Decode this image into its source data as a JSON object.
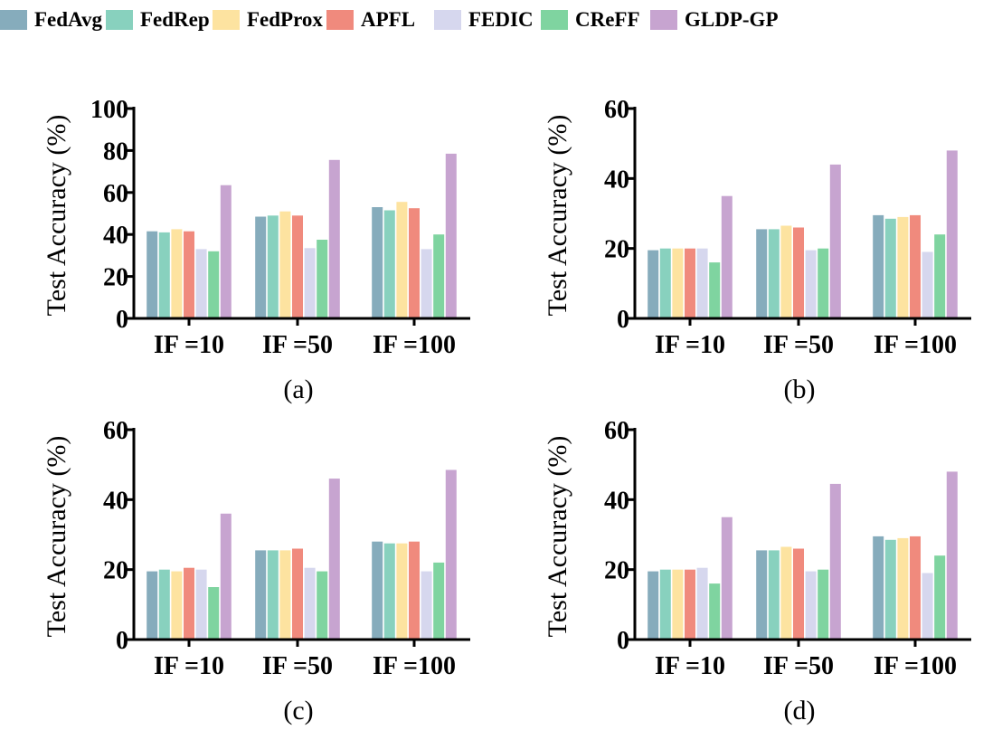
{
  "legend": [
    {
      "name": "FedAvg",
      "color": "#86acbc"
    },
    {
      "name": "FedRep",
      "color": "#88d1be"
    },
    {
      "name": "FedProx",
      "color": "#fde3a0"
    },
    {
      "name": "APFL",
      "color": "#f08a7d"
    },
    {
      "name": "FEDIC",
      "color": "#d6d7ee"
    },
    {
      "name": "CReFF",
      "color": "#7fd4a0"
    },
    {
      "name": "GLDP-GP",
      "color": "#c7a4d0"
    }
  ],
  "chart_data": [
    {
      "type": "bar",
      "panel_label": "(a)",
      "ylabel": "Test Accuracy (%)",
      "ylim": [
        0,
        100
      ],
      "yticks": [
        "0",
        "20",
        "40",
        "60",
        "80",
        "100"
      ],
      "categories": [
        "IF =10",
        "IF =50",
        "IF =100"
      ],
      "series": [
        {
          "name": "FedAvg",
          "values": [
            41.5,
            48.5,
            53
          ]
        },
        {
          "name": "FedRep",
          "values": [
            41,
            49,
            51.5
          ]
        },
        {
          "name": "FedProx",
          "values": [
            42.5,
            51,
            55.5
          ]
        },
        {
          "name": "APFL",
          "values": [
            41.5,
            49,
            52.5
          ]
        },
        {
          "name": "FEDIC",
          "values": [
            33,
            33.5,
            33
          ]
        },
        {
          "name": "CReFF",
          "values": [
            32,
            37.5,
            40
          ]
        },
        {
          "name": "GLDP-GP",
          "values": [
            63.5,
            75.5,
            78.5
          ]
        }
      ]
    },
    {
      "type": "bar",
      "panel_label": "(b)",
      "ylabel": "Test Accuracy (%)",
      "ylim": [
        0,
        60
      ],
      "yticks": [
        "0",
        "20",
        "40",
        "60"
      ],
      "categories": [
        "IF =10",
        "IF =50",
        "IF =100"
      ],
      "series": [
        {
          "name": "FedAvg",
          "values": [
            19.5,
            25.5,
            29.5
          ]
        },
        {
          "name": "FedRep",
          "values": [
            20,
            25.5,
            28.5
          ]
        },
        {
          "name": "FedProx",
          "values": [
            20,
            26.5,
            29
          ]
        },
        {
          "name": "APFL",
          "values": [
            20,
            26,
            29.5
          ]
        },
        {
          "name": "FEDIC",
          "values": [
            20,
            19.5,
            19
          ]
        },
        {
          "name": "CReFF",
          "values": [
            16,
            20,
            24
          ]
        },
        {
          "name": "GLDP-GP",
          "values": [
            35,
            44,
            48
          ]
        }
      ]
    },
    {
      "type": "bar",
      "panel_label": "(c)",
      "ylabel": "Test Accuracy (%)",
      "ylim": [
        0,
        60
      ],
      "yticks": [
        "0",
        "20",
        "40",
        "60"
      ],
      "categories": [
        "IF =10",
        "IF =50",
        "IF =100"
      ],
      "series": [
        {
          "name": "FedAvg",
          "values": [
            19.5,
            25.5,
            28
          ]
        },
        {
          "name": "FedRep",
          "values": [
            20,
            25.5,
            27.5
          ]
        },
        {
          "name": "FedProx",
          "values": [
            19.5,
            25.5,
            27.5
          ]
        },
        {
          "name": "APFL",
          "values": [
            20.5,
            26,
            28
          ]
        },
        {
          "name": "FEDIC",
          "values": [
            20,
            20.5,
            19.5
          ]
        },
        {
          "name": "CReFF",
          "values": [
            15,
            19.5,
            22
          ]
        },
        {
          "name": "GLDP-GP",
          "values": [
            36,
            46,
            48.5
          ]
        }
      ]
    },
    {
      "type": "bar",
      "panel_label": "(d)",
      "ylabel": "Test Accuracy (%)",
      "ylim": [
        0,
        60
      ],
      "yticks": [
        "0",
        "20",
        "40",
        "60"
      ],
      "categories": [
        "IF =10",
        "IF =50",
        "IF =100"
      ],
      "series": [
        {
          "name": "FedAvg",
          "values": [
            19.5,
            25.5,
            29.5
          ]
        },
        {
          "name": "FedRep",
          "values": [
            20,
            25.5,
            28.5
          ]
        },
        {
          "name": "FedProx",
          "values": [
            20,
            26.5,
            29
          ]
        },
        {
          "name": "APFL",
          "values": [
            20,
            26,
            29.5
          ]
        },
        {
          "name": "FEDIC",
          "values": [
            20.5,
            19.5,
            19
          ]
        },
        {
          "name": "CReFF",
          "values": [
            16,
            20,
            24
          ]
        },
        {
          "name": "GLDP-GP",
          "values": [
            35,
            44.5,
            48
          ]
        }
      ]
    }
  ]
}
